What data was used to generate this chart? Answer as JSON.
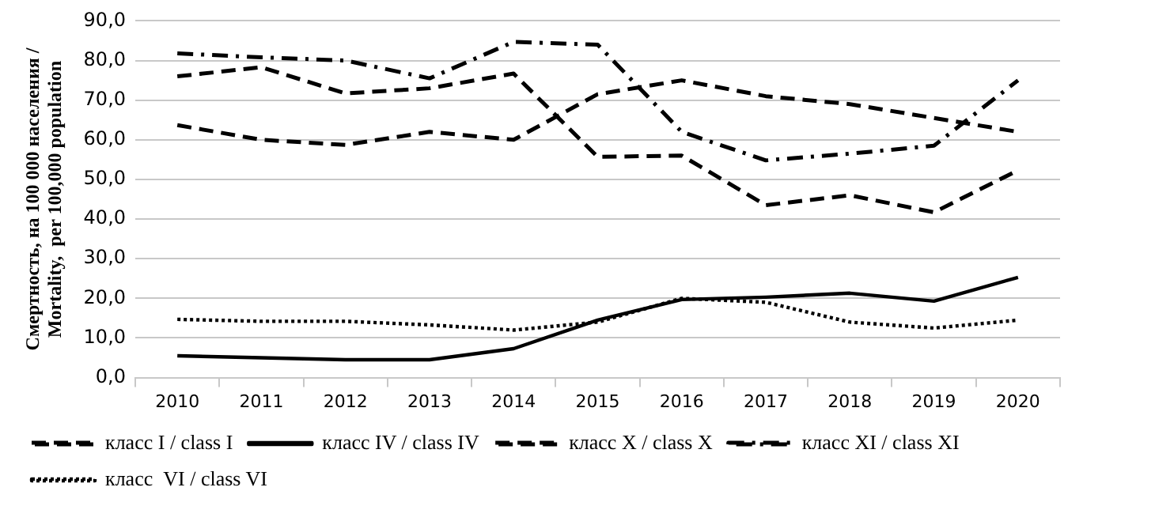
{
  "chart_data": {
    "type": "line",
    "ylabel": "Смертность, на 100 000 населения / Mortality,  per 100,000 population",
    "categories": [
      "2010",
      "2011",
      "2012",
      "2013",
      "2014",
      "2015",
      "2016",
      "2017",
      "2018",
      "2019",
      "2020"
    ],
    "series": [
      {
        "name": "класс I / class I",
        "color": "#000000",
        "line_style": "dashed",
        "values": [
          63.7,
          60,
          58.7,
          62,
          60,
          71.5,
          75,
          71,
          69,
          65.5,
          62
        ]
      },
      {
        "name": "класс IV / class IV",
        "color": "#000000",
        "line_style": "solid",
        "values": [
          5.5,
          5,
          4.5,
          4.5,
          7.3,
          14.5,
          19.7,
          20.3,
          21.3,
          19.3,
          25.3
        ]
      },
      {
        "name": "класс X / class X",
        "color": "#000000",
        "line_style": "dashed",
        "values": [
          76,
          78.3,
          71.7,
          73,
          76.7,
          55.7,
          56,
          43.5,
          46,
          41.7,
          52.3
        ]
      },
      {
        "name": "класс XI / class XI",
        "color": "#000000",
        "line_style": "dashdot",
        "values": [
          81.8,
          80.8,
          80,
          75.5,
          84.7,
          84,
          62,
          54.8,
          56.5,
          58.5,
          75
        ]
      },
      {
        "name": "класс  VI / class VI",
        "color": "#000000",
        "line_style": "dotted",
        "values": [
          14.7,
          14.2,
          14.2,
          13.3,
          12,
          14,
          20,
          19,
          14,
          12.5,
          14.5
        ]
      }
    ],
    "ylim": [
      0,
      90
    ],
    "yticks": [
      {
        "value": 0,
        "label": "0,0"
      },
      {
        "value": 10,
        "label": "10,0"
      },
      {
        "value": 20,
        "label": "20,0"
      },
      {
        "value": 30,
        "label": "30,0"
      },
      {
        "value": 40,
        "label": "40,0"
      },
      {
        "value": 50,
        "label": "50,0"
      },
      {
        "value": 60,
        "label": "60,0"
      },
      {
        "value": 70,
        "label": "70,0"
      },
      {
        "value": 80,
        "label": "80,0"
      },
      {
        "value": 90,
        "label": "90,0"
      }
    ],
    "grid": "y",
    "legend": "bottom",
    "marker": "none"
  }
}
